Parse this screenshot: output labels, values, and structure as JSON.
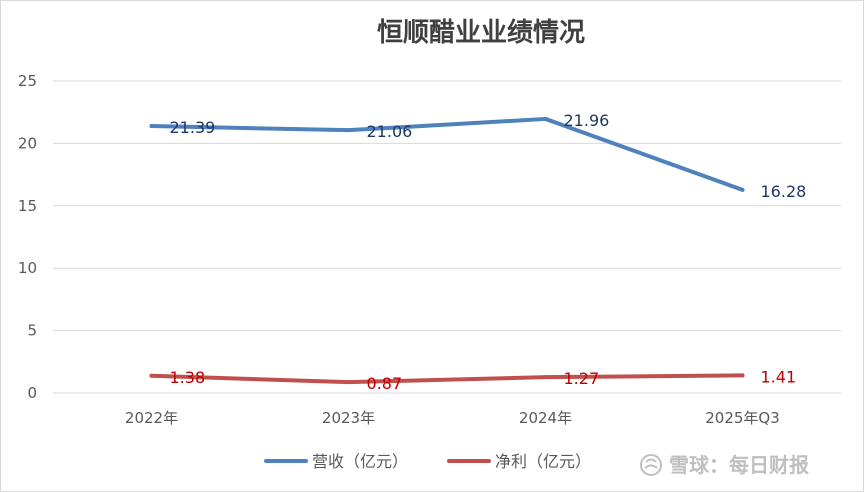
{
  "chart_data": {
    "type": "line",
    "title": "恒顺醋业业绩情况",
    "categories": [
      "2022年",
      "2023年",
      "2024年",
      "2025年Q3"
    ],
    "ylim": [
      0,
      25
    ],
    "yticks": [
      0,
      5,
      10,
      15,
      20,
      25
    ],
    "grid": true,
    "legend_position": "bottom",
    "series": [
      {
        "name": "营收（亿元）",
        "values": [
          21.39,
          21.06,
          21.96,
          16.28
        ],
        "labels": [
          "21.39",
          "21.06",
          "21.96",
          "16.28"
        ],
        "color": "#4f81bd",
        "label_color": "#1f3864"
      },
      {
        "name": "净利（亿元）",
        "values": [
          1.38,
          0.87,
          1.27,
          1.41
        ],
        "labels": [
          "1.38",
          "0.87",
          "1.27",
          "1.41"
        ],
        "color": "#c0504d",
        "label_color": "#c00000"
      }
    ]
  },
  "watermark": "雪球：每日财报"
}
